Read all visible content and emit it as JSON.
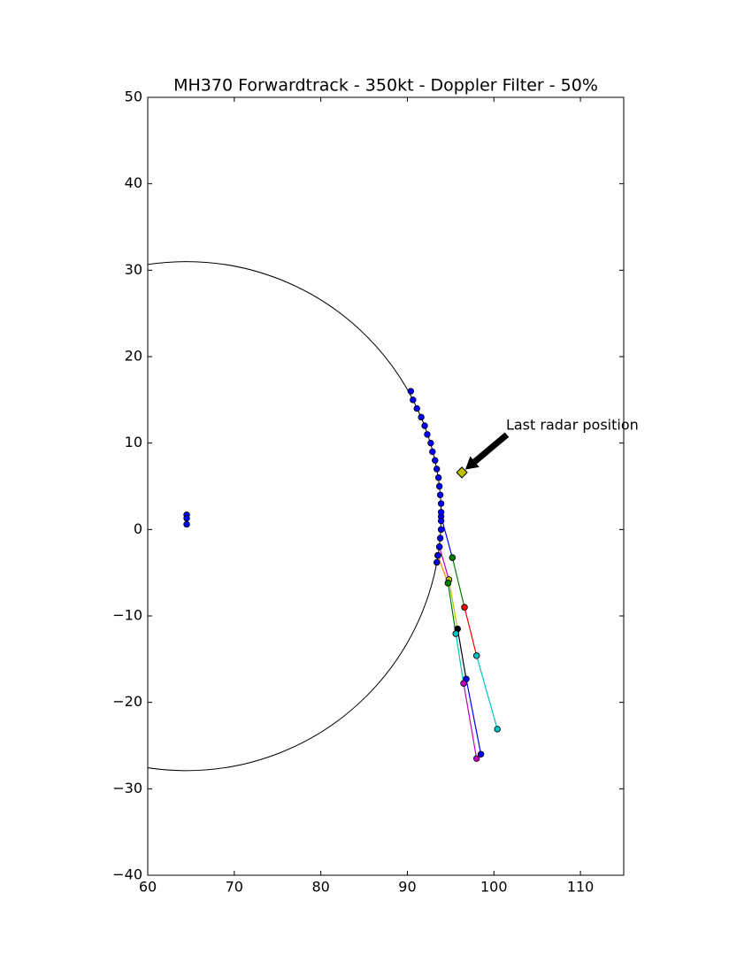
{
  "chart_data": {
    "type": "line",
    "title": "MH370 Forwardtrack - 350kt - Doppler Filter - 50%",
    "xlim": [
      60,
      115
    ],
    "ylim": [
      -40,
      50
    ],
    "xticks": [
      60,
      70,
      80,
      90,
      100,
      110
    ],
    "yticks": [
      {
        "value": -40,
        "label": "−40"
      },
      {
        "value": -30,
        "label": "−30"
      },
      {
        "value": -20,
        "label": "−20"
      },
      {
        "value": -10,
        "label": "−10"
      },
      0,
      10,
      20,
      30,
      40,
      50
    ],
    "circle": {
      "center": [
        64.45,
        1.55
      ],
      "radius": 29.45,
      "color": "#000000"
    },
    "arc_points": {
      "color": "#0000ff",
      "x": [
        90.4,
        90.65,
        91.1,
        91.6,
        92.0,
        92.3,
        92.7,
        92.9,
        93.2,
        93.4,
        93.6,
        93.7,
        93.8,
        93.9,
        93.9,
        93.9,
        93.9,
        93.8,
        93.7,
        93.55,
        93.4
      ],
      "y": [
        16,
        15,
        14,
        13,
        12,
        11,
        10,
        9,
        8,
        7,
        6,
        5,
        4,
        3,
        2,
        1,
        0,
        -1,
        -2,
        -3,
        -3.8
      ]
    },
    "cluster": {
      "color": "#0000ff",
      "x": [
        64.5,
        64.5,
        64.5
      ],
      "y": [
        1.7,
        1.3,
        0.6
      ]
    },
    "segments": [
      {
        "color": "#0000ff",
        "x": [
          93.9,
          95.2
        ],
        "y": [
          1.5,
          -3.25
        ]
      },
      {
        "color": "#008000",
        "x": [
          95.2,
          96.6
        ],
        "y": [
          -3.25,
          -9.0
        ]
      },
      {
        "color": "#ff0000",
        "x": [
          96.6,
          98.0
        ],
        "y": [
          -9.0,
          -14.6
        ]
      },
      {
        "color": "#00bfbf",
        "x": [
          98.0,
          100.4
        ],
        "y": [
          -14.6,
          -23.1
        ]
      },
      {
        "color": "#bf00bf",
        "x": [
          93.7,
          94.8
        ],
        "y": [
          -2.0,
          -5.8
        ]
      },
      {
        "color": "#bfbf00",
        "x": [
          94.8,
          95.8
        ],
        "y": [
          -5.8,
          -11.5
        ]
      },
      {
        "color": "#000000",
        "x": [
          95.8,
          96.8
        ],
        "y": [
          -11.5,
          -17.3
        ]
      },
      {
        "color": "#0000ff",
        "x": [
          96.8,
          98.5
        ],
        "y": [
          -17.3,
          -26.0
        ]
      },
      {
        "color": "#ff8c00",
        "x": [
          93.5,
          94.7
        ],
        "y": [
          -3.0,
          -6.2
        ]
      },
      {
        "color": "#008000",
        "x": [
          94.7,
          95.6
        ],
        "y": [
          -6.2,
          -12.05
        ]
      },
      {
        "color": "#00bfbf",
        "x": [
          95.6,
          96.5
        ],
        "y": [
          -12.05,
          -17.8
        ]
      },
      {
        "color": "#bf00bf",
        "x": [
          96.5,
          98.0
        ],
        "y": [
          -17.8,
          -26.5
        ]
      }
    ],
    "radar": {
      "x": 96.3,
      "y": 6.6,
      "color": "#bfbf00"
    },
    "annotation": {
      "text": "Last radar position",
      "x": 101.4,
      "y": 12.0
    }
  }
}
